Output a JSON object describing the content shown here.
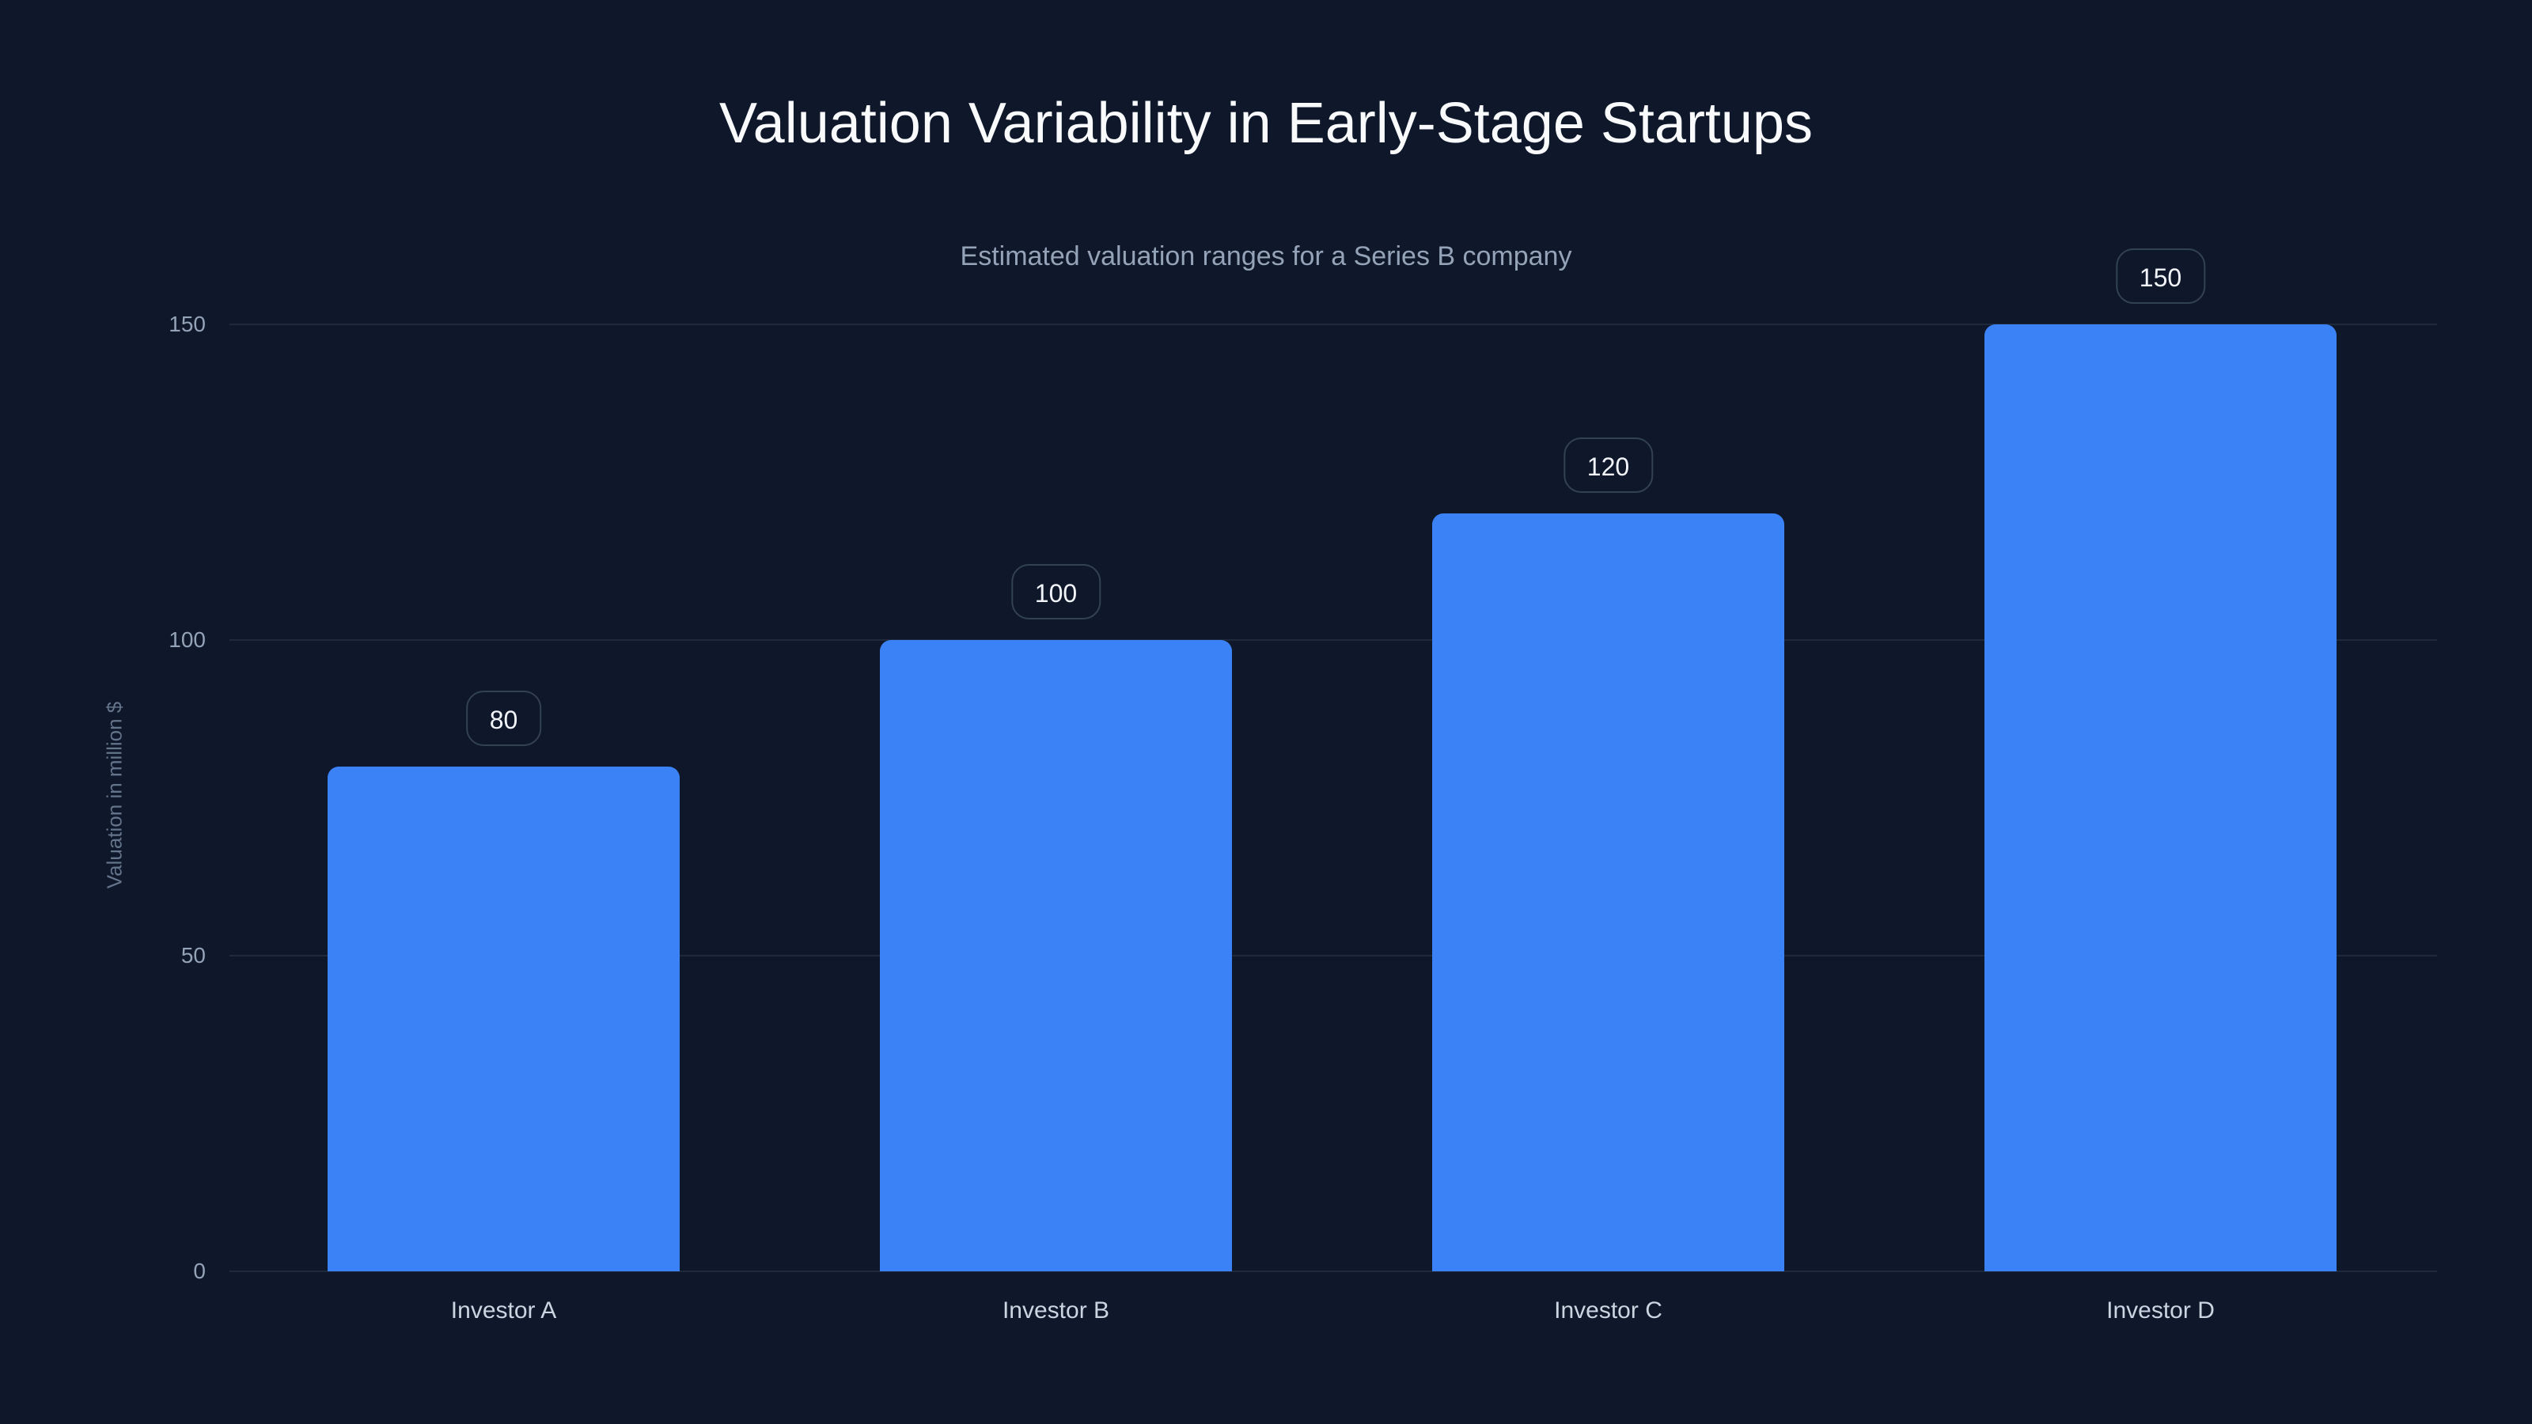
{
  "chart_data": {
    "type": "bar",
    "title": "Valuation Variability in Early-Stage Startups",
    "subtitle": "Estimated valuation ranges for a Series B company",
    "xlabel": "",
    "ylabel": "Valuation in million $",
    "categories": [
      "Investor A",
      "Investor B",
      "Investor C",
      "Investor D"
    ],
    "values": [
      80,
      100,
      120,
      150
    ],
    "data_labels": [
      "80",
      "100",
      "120",
      "150"
    ],
    "ylim": [
      0,
      150
    ],
    "yticks": [
      "0",
      "50",
      "100",
      "150"
    ],
    "grid": true,
    "legend": "none",
    "colors": {
      "bar": "#3b82f6",
      "background": "#0f172a",
      "grid": "#1e293b"
    }
  }
}
